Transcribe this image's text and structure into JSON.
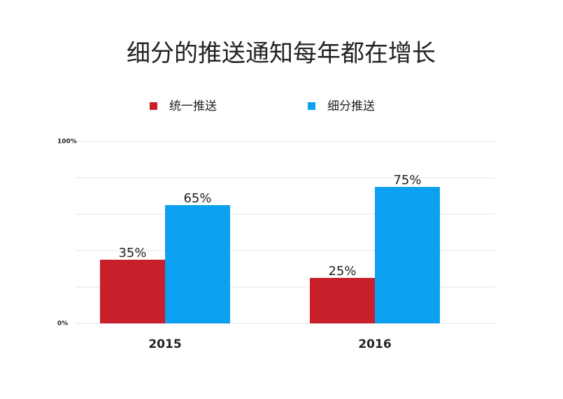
{
  "chart_data": {
    "type": "bar",
    "title": "细分的推送通知每年都在增长",
    "categories": [
      "2015",
      "2016"
    ],
    "series": [
      {
        "name": "统一推送",
        "color": "#c8202a",
        "values": [
          35,
          25
        ],
        "value_labels": [
          "35%",
          "25%"
        ]
      },
      {
        "name": "细分推送",
        "color": "#0ea0f0",
        "values": [
          65,
          75
        ],
        "value_labels": [
          "65%",
          "75%"
        ]
      }
    ],
    "ylim": [
      0,
      100
    ],
    "yticks": [
      {
        "value": 0,
        "label": "0%"
      },
      {
        "value": 20,
        "label": null
      },
      {
        "value": 40,
        "label": null
      },
      {
        "value": 60,
        "label": null
      },
      {
        "value": 80,
        "label": null
      },
      {
        "value": 100,
        "label": "100%"
      }
    ],
    "grid": true,
    "legend": "top"
  }
}
